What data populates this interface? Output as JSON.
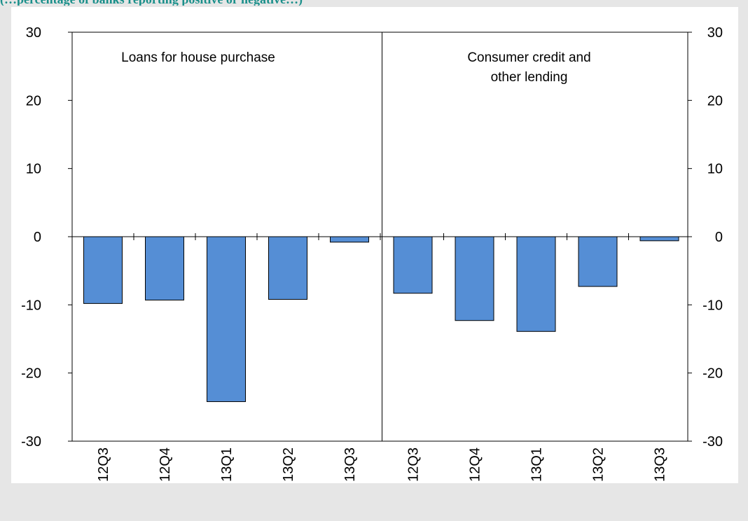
{
  "heading_partial": "(…percentage of banks reporting positive or negative…)",
  "colors": {
    "bar_fill": "#558ed5",
    "bar_stroke": "#000000",
    "axis": "#000000",
    "background": "#e6e6e6",
    "panel": "#ffffff",
    "heading": "#1a8f8a"
  },
  "chart_data": {
    "type": "bar",
    "ylim": [
      -30,
      30
    ],
    "yticks": [
      30,
      20,
      10,
      0,
      -10,
      -20,
      -30
    ],
    "ytick_labels": [
      "30",
      "20",
      "10",
      "0",
      "-10",
      "-20",
      "-30"
    ],
    "grid": false,
    "panels": [
      {
        "title_lines": [
          "Loans for house purchase"
        ],
        "categories": [
          "12Q3",
          "12Q4",
          "13Q1",
          "13Q2",
          "13Q3"
        ],
        "values": [
          -9.8,
          -9.3,
          -24.2,
          -9.2,
          -0.8
        ]
      },
      {
        "title_lines": [
          "Consumer credit and",
          "other lending"
        ],
        "categories": [
          "12Q3",
          "12Q4",
          "13Q1",
          "13Q2",
          "13Q3"
        ],
        "values": [
          -8.3,
          -12.3,
          -13.9,
          -7.3,
          -0.6
        ]
      }
    ]
  }
}
